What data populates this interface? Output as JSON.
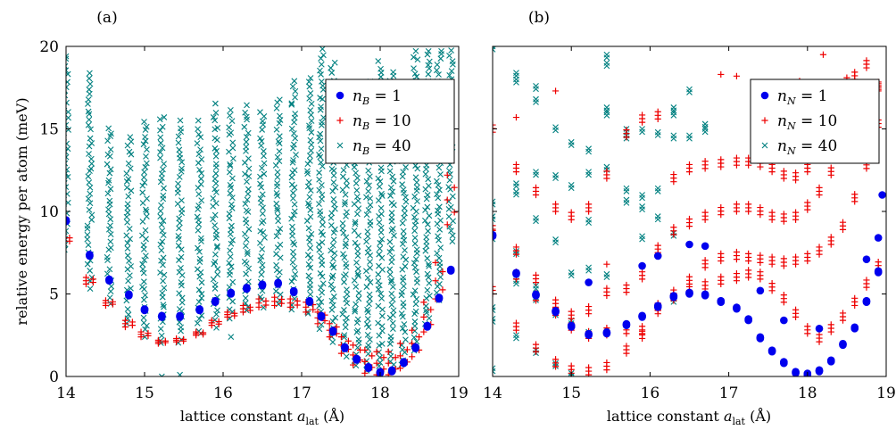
{
  "figure": {
    "ylabel": "relative energy per atom (meV)"
  },
  "chart_data": [
    {
      "type": "scatter",
      "panel_label": "(a)",
      "xlabel": "lattice constant a_lat (Å)",
      "xlabel_parts": {
        "prefix": "lattice constant ",
        "var": "a",
        "sub": "lat",
        "suffix": " (Å)"
      },
      "xlim": [
        14,
        19
      ],
      "ylim": [
        0,
        20
      ],
      "xticks": [
        14,
        15,
        16,
        17,
        18,
        19
      ],
      "yticks": [
        0,
        5,
        10,
        15,
        20
      ],
      "ylabel": "relative energy per atom (meV)",
      "legend_position": "upper-right",
      "x_grid": [
        14.0,
        14.3,
        14.55,
        14.8,
        15.0,
        15.22,
        15.45,
        15.7,
        15.9,
        16.1,
        16.3,
        16.5,
        16.7,
        16.9,
        17.1,
        17.25,
        17.4,
        17.55,
        17.7,
        17.85,
        18.0,
        18.15,
        18.3,
        18.45,
        18.6,
        18.75,
        18.9
      ],
      "series": [
        {
          "name": "n_B = 1",
          "legend": {
            "var": "n",
            "sub": "B",
            "rest": " = 1"
          },
          "marker": "circle",
          "color": "#0000ee",
          "values": [
            9.4,
            7.3,
            5.8,
            4.9,
            4.0,
            3.6,
            3.6,
            4.0,
            4.5,
            5.0,
            5.3,
            5.5,
            5.6,
            5.1,
            4.5,
            3.6,
            2.7,
            1.7,
            1.0,
            0.5,
            0.2,
            0.3,
            0.8,
            1.7,
            3.0,
            4.7,
            6.4
          ]
        },
        {
          "name": "n_B = 10",
          "legend": {
            "var": "n",
            "sub": "B",
            "rest": " = 10"
          },
          "marker": "plus",
          "color": "#ee0000",
          "spread": [
            [
              0.0,
              0.4
            ],
            [
              0.0,
              0.4
            ],
            [
              0.0,
              0.3
            ],
            [
              -0.1,
              0.3
            ],
            [
              0.0,
              0.3
            ],
            [
              0.0,
              0.2
            ],
            [
              0.0,
              0.2
            ],
            [
              0.0,
              0.2
            ],
            [
              0.0,
              0.3
            ],
            [
              0.0,
              0.3
            ],
            [
              0.0,
              0.4
            ],
            [
              0.0,
              0.5
            ],
            [
              0.0,
              0.5
            ],
            [
              0.0,
              0.5
            ],
            [
              0.0,
              0.6
            ],
            [
              0.0,
              0.7
            ],
            [
              0.0,
              0.8
            ],
            [
              0.0,
              1.0
            ],
            [
              0.0,
              1.2
            ],
            [
              -0.1,
              1.3
            ],
            [
              0.0,
              1.4
            ],
            [
              0.0,
              1.4
            ],
            [
              0.0,
              1.5
            ],
            [
              0.0,
              1.6
            ],
            [
              0.0,
              1.8
            ],
            [
              0.0,
              2.2
            ],
            [
              0.0,
              3.0
            ]
          ],
          "values": [
            8.1,
            5.6,
            4.3,
            3.1,
            2.4,
            2.0,
            2.1,
            2.5,
            3.1,
            3.6,
            3.9,
            4.2,
            4.3,
            4.2,
            3.9,
            3.2,
            2.4,
            1.4,
            0.7,
            0.3,
            0.1,
            0.1,
            0.5,
            1.2,
            2.7,
            4.7,
            9.2
          ]
        },
        {
          "name": "n_B = 40",
          "legend": {
            "var": "n",
            "sub": "B",
            "rest": " = 40"
          },
          "marker": "cross",
          "color": "#008080",
          "band_low": [
            7.5,
            5.3,
            4.3,
            3.1,
            2.3,
            1.8,
            1.9,
            2.4,
            2.9,
            3.4,
            3.8,
            4.1,
            4.2,
            4.0,
            3.6,
            2.8,
            2.0,
            1.2,
            0.6,
            0.3,
            0.1,
            0.2,
            0.6,
            1.4,
            3.0,
            4.6,
            8.0
          ],
          "band_high": [
            19.4,
            18.5,
            15.3,
            14.8,
            15.7,
            16.0,
            15.6,
            15.6,
            16.6,
            16.3,
            16.6,
            16.3,
            17.0,
            18.1,
            18.3,
            20.0,
            19.1,
            16.7,
            16.5,
            18.0,
            19.2,
            18.6,
            17.3,
            19.9,
            20.0,
            20.0,
            20.0
          ],
          "outliers": [
            {
              "x": 15.22,
              "y": 0.0
            },
            {
              "x": 15.45,
              "y": 0.1
            },
            {
              "x": 16.1,
              "y": 2.4
            },
            {
              "x": 14.0,
              "y": 19.4
            }
          ]
        }
      ]
    },
    {
      "type": "scatter",
      "panel_label": "(b)",
      "xlabel": "lattice constant a_lat (Å)",
      "xlabel_parts": {
        "prefix": "lattice constant ",
        "var": "a",
        "sub": "lat",
        "suffix": " (Å)"
      },
      "xlim": [
        14,
        19
      ],
      "ylim": [
        0,
        20
      ],
      "xticks": [
        14,
        15,
        16,
        17,
        18,
        19
      ],
      "legend_position": "upper-right",
      "x_grid": [
        14.0,
        14.3,
        14.55,
        14.8,
        15.0,
        15.22,
        15.45,
        15.7,
        15.9,
        16.1,
        16.3,
        16.5,
        16.7,
        16.9,
        17.1,
        17.25,
        17.4,
        17.55,
        17.7,
        17.85,
        18.0,
        18.15,
        18.3,
        18.45,
        18.6,
        18.75,
        18.9
      ],
      "series": [
        {
          "name": "n_N = 1",
          "legend": {
            "var": "n",
            "sub": "N",
            "rest": " = 1"
          },
          "marker": "circle",
          "color": "#0000ee",
          "values": [
            8.5,
            6.2,
            4.9,
            3.9,
            3.0,
            2.5,
            2.6,
            3.1,
            3.6,
            4.2,
            4.8,
            5.0,
            4.9,
            4.5,
            4.1,
            3.4,
            2.3,
            1.5,
            0.8,
            0.2,
            0.1,
            0.3,
            0.9,
            1.9,
            2.9,
            4.5,
            6.3
          ],
          "extra": [
            {
              "x": 15.22,
              "y": 5.7
            },
            {
              "x": 15.9,
              "y": 6.7
            },
            {
              "x": 16.1,
              "y": 7.3
            },
            {
              "x": 16.5,
              "y": 8.0
            },
            {
              "x": 16.7,
              "y": 7.9
            },
            {
              "x": 17.4,
              "y": 5.2
            },
            {
              "x": 17.7,
              "y": 3.4
            },
            {
              "x": 18.15,
              "y": 2.9
            },
            {
              "x": 18.75,
              "y": 7.1
            },
            {
              "x": 18.9,
              "y": 8.4
            },
            {
              "x": 18.95,
              "y": 11.0
            }
          ]
        },
        {
          "name": "n_N = 10",
          "legend": {
            "var": "n",
            "sub": "N",
            "rest": " = 10"
          },
          "marker": "plus",
          "color": "#ee0000",
          "branches": [
            [
              8.4,
              5.9,
              4.6,
              3.7,
              2.8,
              2.3,
              2.5,
              2.6,
              2.6,
              4.0,
              4.6,
              5.0,
              5.3,
              5.6,
              5.8,
              6.0,
              5.9,
              5.2,
              4.5,
              3.6,
              2.6,
              2.1,
              2.7,
              3.4,
              4.3,
              5.4,
              6.5
            ],
            [
              5.0,
              2.8,
              1.5,
              0.6,
              0.2,
              0.1,
              0.4,
              1.4,
              2.3,
              3.8,
              4.8,
              5.6,
              6.6,
              7.0,
              7.1,
              7.0,
              6.9,
              6.8,
              6.7,
              6.8,
              7.0,
              7.4,
              8.0,
              8.9,
              10.6,
              12.6,
              15.1
            ],
            [
              8.7,
              7.4,
              5.7,
              4.2,
              3.5,
              3.8,
              4.9,
              5.1,
              5.9,
              7.5,
              8.6,
              9.1,
              9.5,
              9.8,
              10.0,
              10.0,
              9.8,
              9.5,
              9.4,
              9.5,
              10.1,
              11.0,
              12.2,
              13.8,
              15.5,
              16.6,
              17.3
            ],
            [
              14.8,
              12.4,
              11.0,
              10.0,
              9.5,
              10.0,
              12.0,
              14.5,
              15.4,
              15.6,
              11.8,
              12.4,
              12.6,
              12.7,
              12.8,
              12.8,
              12.7,
              12.4,
              12.0,
              11.9,
              12.4,
              13.2,
              14.4,
              16.0,
              18.0,
              18.7,
              17.4
            ]
          ],
          "extra": [
            {
              "x": 14.3,
              "y": 15.7
            },
            {
              "x": 14.8,
              "y": 17.3
            },
            {
              "x": 15.45,
              "y": 6.8
            },
            {
              "x": 16.9,
              "y": 18.3
            },
            {
              "x": 17.1,
              "y": 18.2
            },
            {
              "x": 18.2,
              "y": 19.5
            },
            {
              "x": 18.5,
              "y": 18.1
            },
            {
              "x": 17.9,
              "y": 17.9
            }
          ]
        },
        {
          "name": "n_N = 40",
          "legend": {
            "var": "n",
            "sub": "N",
            "rest": " = 40"
          },
          "marker": "cross",
          "color": "#008080",
          "points": [
            {
              "x": 14.0,
              "y": 20.0
            },
            {
              "x": 14.0,
              "y": 10.6
            },
            {
              "x": 14.0,
              "y": 9.7
            },
            {
              "x": 14.0,
              "y": 8.5
            },
            {
              "x": 14.0,
              "y": 4.2
            },
            {
              "x": 14.0,
              "y": 3.5
            },
            {
              "x": 14.0,
              "y": 0.5
            },
            {
              "x": 14.3,
              "y": 18.4
            },
            {
              "x": 14.3,
              "y": 18.0
            },
            {
              "x": 14.3,
              "y": 11.7
            },
            {
              "x": 14.3,
              "y": 11.2
            },
            {
              "x": 14.3,
              "y": 7.6
            },
            {
              "x": 14.3,
              "y": 5.8
            },
            {
              "x": 14.3,
              "y": 2.5
            },
            {
              "x": 14.55,
              "y": 17.6
            },
            {
              "x": 14.55,
              "y": 16.8
            },
            {
              "x": 14.55,
              "y": 12.4
            },
            {
              "x": 14.55,
              "y": 9.6
            },
            {
              "x": 14.55,
              "y": 5.5
            },
            {
              "x": 14.55,
              "y": 4.8
            },
            {
              "x": 14.55,
              "y": 1.6
            },
            {
              "x": 14.8,
              "y": 15.1
            },
            {
              "x": 14.8,
              "y": 12.2
            },
            {
              "x": 14.8,
              "y": 8.3
            },
            {
              "x": 14.8,
              "y": 3.9
            },
            {
              "x": 14.8,
              "y": 0.8
            },
            {
              "x": 15.0,
              "y": 14.2
            },
            {
              "x": 15.0,
              "y": 11.6
            },
            {
              "x": 15.0,
              "y": 6.3
            },
            {
              "x": 15.0,
              "y": 3.4
            },
            {
              "x": 15.0,
              "y": 0.2
            },
            {
              "x": 15.22,
              "y": 13.8
            },
            {
              "x": 15.22,
              "y": 12.4
            },
            {
              "x": 15.22,
              "y": 9.5
            },
            {
              "x": 15.22,
              "y": 6.6
            },
            {
              "x": 15.22,
              "y": 2.7
            },
            {
              "x": 15.45,
              "y": 19.5
            },
            {
              "x": 15.45,
              "y": 19.0
            },
            {
              "x": 15.45,
              "y": 16.3
            },
            {
              "x": 15.45,
              "y": 16.0
            },
            {
              "x": 15.45,
              "y": 12.7
            },
            {
              "x": 15.45,
              "y": 6.2
            },
            {
              "x": 15.45,
              "y": 2.8
            },
            {
              "x": 15.7,
              "y": 15.0
            },
            {
              "x": 15.7,
              "y": 14.6
            },
            {
              "x": 15.7,
              "y": 11.4
            },
            {
              "x": 15.7,
              "y": 10.7
            },
            {
              "x": 15.9,
              "y": 15.0
            },
            {
              "x": 15.9,
              "y": 11.0
            },
            {
              "x": 15.9,
              "y": 10.3
            },
            {
              "x": 15.9,
              "y": 8.5
            },
            {
              "x": 16.1,
              "y": 14.8
            },
            {
              "x": 16.1,
              "y": 11.4
            },
            {
              "x": 16.1,
              "y": 9.7
            },
            {
              "x": 16.3,
              "y": 16.3
            },
            {
              "x": 16.3,
              "y": 16.0
            },
            {
              "x": 16.3,
              "y": 14.6
            },
            {
              "x": 16.3,
              "y": 8.7
            },
            {
              "x": 16.3,
              "y": 4.7
            },
            {
              "x": 16.5,
              "y": 17.4
            },
            {
              "x": 16.5,
              "y": 14.6
            },
            {
              "x": 16.7,
              "y": 15.3
            },
            {
              "x": 16.7,
              "y": 15.0
            }
          ]
        }
      ]
    }
  ]
}
